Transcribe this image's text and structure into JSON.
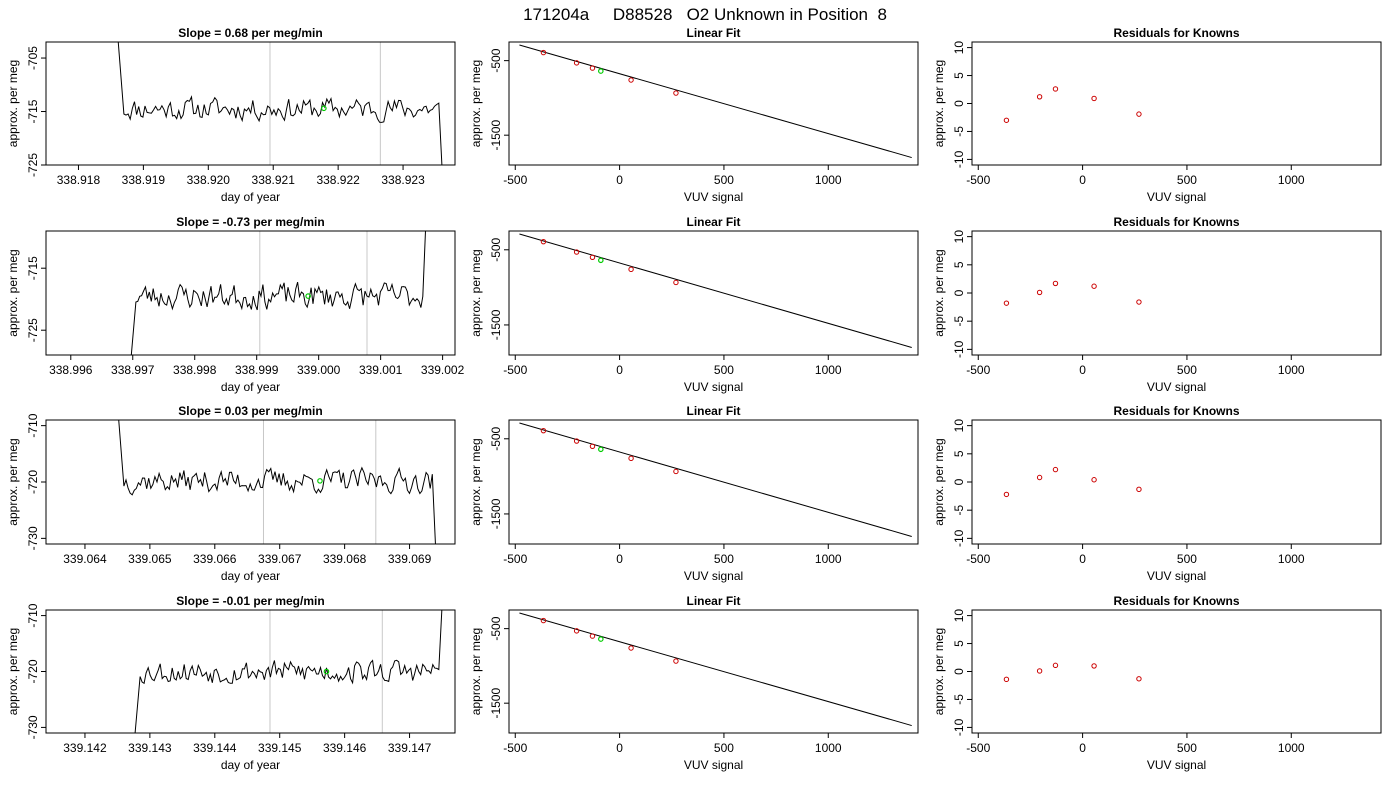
{
  "figure_title": "171204a     D88528   O2 Unknown in Position  8",
  "chart_data": [
    {
      "type": "line",
      "panel_title": "Slope =  0.68  per meg/min",
      "xlabel": "day of year",
      "ylabel": "approx. per meg",
      "xlim": [
        338.9175,
        338.9238
      ],
      "ylim": [
        -725,
        -702
      ],
      "xticks": [
        338.918,
        338.919,
        338.92,
        338.921,
        338.922,
        338.923
      ],
      "xtick_labels": [
        "338.918",
        "338.919",
        "338.920",
        "338.921",
        "338.922",
        "338.923"
      ],
      "yticks": [
        -725,
        -715,
        -705
      ],
      "ytick_labels": [
        "-725",
        "-715",
        "-705"
      ],
      "vlines": [
        338.92095,
        338.92265
      ],
      "series": [
        {
          "x_start": 338.9187,
          "x_end": 338.92355,
          "n_points": 150,
          "baseline": -714.5,
          "amplitude": 1.8,
          "seed": 11,
          "pre_value": -700,
          "post_value": -728
        }
      ],
      "marker": {
        "x": 338.92178,
        "y": -714.4,
        "color": "#00cc00"
      }
    },
    {
      "type": "scatter",
      "panel_title": "Linear Fit",
      "xlabel": "VUV signal",
      "ylabel": "approx. per meg",
      "xlim": [
        -530,
        1430
      ],
      "ylim": [
        -1900,
        -250
      ],
      "xticks": [
        -500,
        0,
        500,
        1000
      ],
      "xtick_labels": [
        "-500",
        "0",
        "500",
        "1000"
      ],
      "yticks": [
        -1500,
        -500
      ],
      "ytick_labels": [
        "-1500",
        "-500"
      ],
      "fit_line": {
        "x": [
          -480,
          1400
        ],
        "y": [
          -290,
          -1800
        ]
      },
      "points": {
        "x": [
          -365,
          -206,
          -130,
          55,
          270
        ],
        "y": [
          -392,
          -530,
          -600,
          -760,
          -935
        ],
        "color": "#cc0000"
      },
      "marker": {
        "x": -90,
        "y": -640,
        "color": "#00cc00"
      }
    },
    {
      "type": "scatter",
      "panel_title": "Residuals for Knowns",
      "xlabel": "VUV signal",
      "ylabel": "approx. per meg",
      "xlim": [
        -530,
        1430
      ],
      "ylim": [
        -11,
        11
      ],
      "xticks": [
        -500,
        0,
        500,
        1000
      ],
      "xtick_labels": [
        "-500",
        "0",
        "500",
        "1000"
      ],
      "yticks": [
        -10,
        -5,
        0,
        5,
        10
      ],
      "ytick_labels": [
        "-10",
        "-5",
        "0",
        "5",
        "10"
      ],
      "points": {
        "x": [
          -365,
          -206,
          -130,
          55,
          270
        ],
        "y": [
          -3.0,
          1.2,
          2.6,
          0.9,
          -1.9
        ],
        "color": "#cc0000"
      }
    },
    {
      "type": "line",
      "panel_title": "Slope =  -0.73  per meg/min",
      "xlabel": "day of year",
      "ylabel": "approx. per meg",
      "xlim": [
        338.9956,
        339.0022
      ],
      "ylim": [
        -729,
        -709
      ],
      "xticks": [
        338.996,
        338.997,
        338.998,
        338.999,
        339.0,
        339.001,
        339.002
      ],
      "xtick_labels": [
        "338.996",
        "338.997",
        "338.998",
        "338.999",
        "339.000",
        "339.001",
        "339.002"
      ],
      "yticks": [
        -725,
        -715
      ],
      "ytick_labels": [
        "-725",
        "-715"
      ],
      "vlines": [
        338.99905,
        339.00078
      ],
      "series": [
        {
          "x_start": 338.99705,
          "x_end": 339.00168,
          "n_points": 150,
          "baseline": -719.5,
          "amplitude": 1.8,
          "seed": 23,
          "pre_value": -732,
          "post_value": -705
        }
      ],
      "marker": {
        "x": 338.99983,
        "y": -719.5,
        "color": "#00cc00"
      }
    },
    {
      "type": "scatter",
      "panel_title": "Linear Fit",
      "xlabel": "VUV signal",
      "ylabel": "approx. per meg",
      "xlim": [
        -530,
        1430
      ],
      "ylim": [
        -1900,
        -250
      ],
      "xticks": [
        -500,
        0,
        500,
        1000
      ],
      "xtick_labels": [
        "-500",
        "0",
        "500",
        "1000"
      ],
      "yticks": [
        -1500,
        -500
      ],
      "ytick_labels": [
        "-1500",
        "-500"
      ],
      "fit_line": {
        "x": [
          -480,
          1400
        ],
        "y": [
          -290,
          -1800
        ]
      },
      "points": {
        "x": [
          -365,
          -206,
          -130,
          55,
          270
        ],
        "y": [
          -392,
          -530,
          -600,
          -760,
          -935
        ],
        "color": "#cc0000"
      },
      "marker": {
        "x": -90,
        "y": -640,
        "color": "#00cc00"
      }
    },
    {
      "type": "scatter",
      "panel_title": "Residuals for Knowns",
      "xlabel": "VUV signal",
      "ylabel": "approx. per meg",
      "xlim": [
        -530,
        1430
      ],
      "ylim": [
        -11,
        11
      ],
      "xticks": [
        -500,
        0,
        500,
        1000
      ],
      "xtick_labels": [
        "-500",
        "0",
        "500",
        "1000"
      ],
      "yticks": [
        -10,
        -5,
        0,
        5,
        10
      ],
      "ytick_labels": [
        "-10",
        "-5",
        "0",
        "5",
        "10"
      ],
      "points": {
        "x": [
          -365,
          -206,
          -130,
          55,
          270
        ],
        "y": [
          -1.8,
          0.1,
          1.7,
          1.2,
          -1.6
        ],
        "color": "#cc0000"
      }
    },
    {
      "type": "line",
      "panel_title": "Slope =  0.03  per meg/min",
      "xlabel": "day of year",
      "ylabel": "approx. per meg",
      "xlim": [
        339.0634,
        339.0697
      ],
      "ylim": [
        -731,
        -709
      ],
      "xticks": [
        339.064,
        339.065,
        339.066,
        339.067,
        339.068,
        339.069
      ],
      "xtick_labels": [
        "339.064",
        "339.065",
        "339.066",
        "339.067",
        "339.068",
        "339.069"
      ],
      "yticks": [
        -730,
        -720,
        -710
      ],
      "ytick_labels": [
        "-730",
        "-720",
        "-710"
      ],
      "vlines": [
        339.06675,
        339.06848
      ],
      "series": [
        {
          "x_start": 339.0646,
          "x_end": 339.06935,
          "n_points": 150,
          "baseline": -719.8,
          "amplitude": 1.8,
          "seed": 37,
          "pre_value": -706,
          "post_value": -734
        }
      ],
      "marker": {
        "x": 339.06762,
        "y": -719.8,
        "color": "#00cc00"
      }
    },
    {
      "type": "scatter",
      "panel_title": "Linear Fit",
      "xlabel": "VUV signal",
      "ylabel": "approx. per meg",
      "xlim": [
        -530,
        1430
      ],
      "ylim": [
        -1900,
        -250
      ],
      "xticks": [
        -500,
        0,
        500,
        1000
      ],
      "xtick_labels": [
        "-500",
        "0",
        "500",
        "1000"
      ],
      "yticks": [
        -1500,
        -500
      ],
      "ytick_labels": [
        "-1500",
        "-500"
      ],
      "fit_line": {
        "x": [
          -480,
          1400
        ],
        "y": [
          -290,
          -1800
        ]
      },
      "points": {
        "x": [
          -365,
          -206,
          -130,
          55,
          270
        ],
        "y": [
          -392,
          -530,
          -600,
          -760,
          -935
        ],
        "color": "#cc0000"
      },
      "marker": {
        "x": -90,
        "y": -640,
        "color": "#00cc00"
      }
    },
    {
      "type": "scatter",
      "panel_title": "Residuals for Knowns",
      "xlabel": "VUV signal",
      "ylabel": "approx. per meg",
      "xlim": [
        -530,
        1430
      ],
      "ylim": [
        -11,
        11
      ],
      "xticks": [
        -500,
        0,
        500,
        1000
      ],
      "xtick_labels": [
        "-500",
        "0",
        "500",
        "1000"
      ],
      "yticks": [
        -10,
        -5,
        0,
        5,
        10
      ],
      "ytick_labels": [
        "-10",
        "-5",
        "0",
        "5",
        "10"
      ],
      "points": {
        "x": [
          -365,
          -206,
          -130,
          55,
          270
        ],
        "y": [
          -2.2,
          0.8,
          2.2,
          0.4,
          -1.3
        ],
        "color": "#cc0000"
      }
    },
    {
      "type": "line",
      "panel_title": "Slope =  -0.01  per meg/min",
      "xlabel": "day of year",
      "ylabel": "approx. per meg",
      "xlim": [
        339.1414,
        339.1477
      ],
      "ylim": [
        -731,
        -709
      ],
      "xticks": [
        339.142,
        339.143,
        339.144,
        339.145,
        339.146,
        339.147
      ],
      "xtick_labels": [
        "339.142",
        "339.143",
        "339.144",
        "339.145",
        "339.146",
        "339.147"
      ],
      "yticks": [
        -730,
        -720,
        -710
      ],
      "ytick_labels": [
        "-730",
        "-720",
        "-710"
      ],
      "vlines": [
        339.14485,
        339.14658
      ],
      "series": [
        {
          "x_start": 339.14285,
          "x_end": 339.14745,
          "n_points": 150,
          "baseline": -720.0,
          "amplitude": 1.8,
          "seed": 53,
          "pre_value": -734,
          "post_value": -706
        }
      ],
      "marker": {
        "x": 339.14572,
        "y": -720.0,
        "color": "#00cc00"
      }
    },
    {
      "type": "scatter",
      "panel_title": "Linear Fit",
      "xlabel": "VUV signal",
      "ylabel": "approx. per meg",
      "xlim": [
        -530,
        1430
      ],
      "ylim": [
        -1900,
        -250
      ],
      "xticks": [
        -500,
        0,
        500,
        1000
      ],
      "xtick_labels": [
        "-500",
        "0",
        "500",
        "1000"
      ],
      "yticks": [
        -1500,
        -500
      ],
      "ytick_labels": [
        "-1500",
        "-500"
      ],
      "fit_line": {
        "x": [
          -480,
          1400
        ],
        "y": [
          -290,
          -1800
        ]
      },
      "points": {
        "x": [
          -365,
          -206,
          -130,
          55,
          270
        ],
        "y": [
          -392,
          -530,
          -600,
          -760,
          -935
        ],
        "color": "#cc0000"
      },
      "marker": {
        "x": -90,
        "y": -640,
        "color": "#00cc00"
      }
    },
    {
      "type": "scatter",
      "panel_title": "Residuals for Knowns",
      "xlabel": "VUV signal",
      "ylabel": "approx. per meg",
      "xlim": [
        -530,
        1430
      ],
      "ylim": [
        -11,
        11
      ],
      "xticks": [
        -500,
        0,
        500,
        1000
      ],
      "xtick_labels": [
        "-500",
        "0",
        "500",
        "1000"
      ],
      "yticks": [
        -10,
        -5,
        0,
        5,
        10
      ],
      "ytick_labels": [
        "-10",
        "-5",
        "0",
        "5",
        "10"
      ],
      "points": {
        "x": [
          -365,
          -206,
          -130,
          55,
          270
        ],
        "y": [
          -1.4,
          0.1,
          1.1,
          1.0,
          -1.3
        ],
        "color": "#cc0000"
      }
    }
  ]
}
